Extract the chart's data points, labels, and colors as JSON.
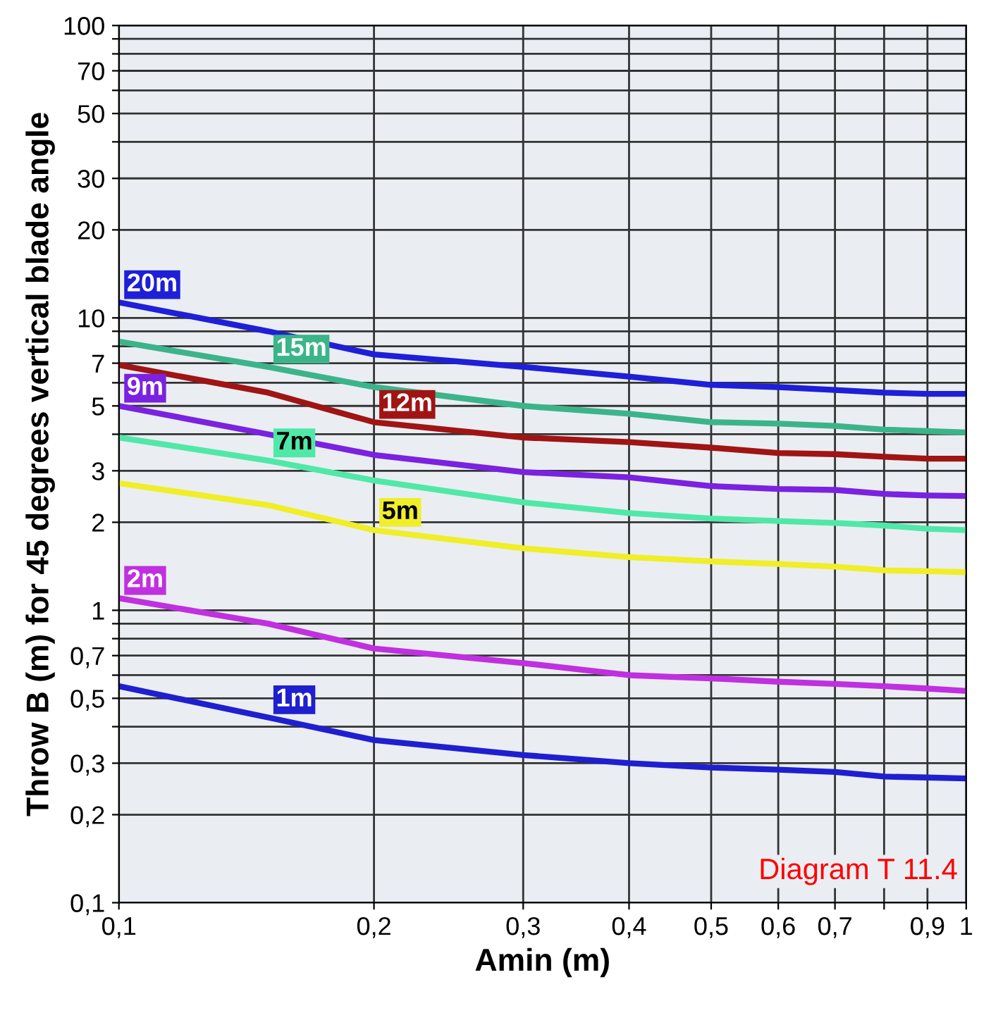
{
  "chart_data": {
    "type": "line",
    "xlabel": "Amin (m)",
    "ylabel": "Throw B (m) for 45 degrees vertical blade angle",
    "log": "xy",
    "grid": true,
    "marker": "none",
    "line_style": "solid",
    "x": [
      0.1,
      0.15,
      0.2,
      0.3,
      0.4,
      0.5,
      0.6,
      0.7,
      0.8,
      0.9,
      1.0
    ],
    "xlim": [
      0.1,
      1
    ],
    "ylim": [
      0.1,
      100
    ],
    "xticks": [
      {
        "value": 0.1,
        "label": "0,1"
      },
      {
        "value": 0.2,
        "label": "0,2"
      },
      {
        "value": 0.3,
        "label": "0,3"
      },
      {
        "value": 0.4,
        "label": "0,4"
      },
      {
        "value": 0.5,
        "label": "0,5"
      },
      {
        "value": 0.6,
        "label": "0,6"
      },
      {
        "value": 0.7,
        "label": "0,7"
      },
      {
        "value": 0.8,
        "label": null
      },
      {
        "value": 0.9,
        "label": "0,9"
      },
      1
    ],
    "yticks": [
      {
        "value": 0.1,
        "label": "0,1"
      },
      {
        "value": 0.2,
        "label": "0,2"
      },
      {
        "value": 0.3,
        "label": "0,3"
      },
      {
        "value": 0.4,
        "label": null
      },
      {
        "value": 0.5,
        "label": "0,5"
      },
      {
        "value": 0.6,
        "label": null
      },
      {
        "value": 0.7,
        "label": "0,7"
      },
      {
        "value": 0.8,
        "label": null
      },
      {
        "value": 0.9,
        "label": null
      },
      1,
      2,
      3,
      {
        "value": 4,
        "label": null
      },
      5,
      {
        "value": 6,
        "label": null
      },
      7,
      {
        "value": 8,
        "label": null
      },
      {
        "value": 9,
        "label": null
      },
      10,
      20,
      30,
      {
        "value": 40,
        "label": null
      },
      50,
      {
        "value": 60,
        "label": null
      },
      70,
      {
        "value": 80,
        "label": null
      },
      {
        "value": 90,
        "label": null
      },
      100
    ],
    "series": [
      {
        "name": "20m",
        "color": "#1f1fd8",
        "values": [
          11.3,
          9.0,
          7.5,
          6.8,
          6.3,
          5.9,
          5.8,
          5.67,
          5.55,
          5.5,
          5.5
        ]
      },
      {
        "name": "15m",
        "color": "#3cb48a",
        "values": [
          8.3,
          6.8,
          5.8,
          5.0,
          4.7,
          4.4,
          4.35,
          4.27,
          4.15,
          4.1,
          4.06
        ]
      },
      {
        "name": "12m",
        "color": "#a01414",
        "values": [
          6.9,
          5.55,
          4.4,
          3.9,
          3.76,
          3.6,
          3.45,
          3.42,
          3.35,
          3.3,
          3.3
        ]
      },
      {
        "name": "9m",
        "color": "#7a22e0",
        "values": [
          5.0,
          4.0,
          3.4,
          2.97,
          2.85,
          2.66,
          2.6,
          2.58,
          2.5,
          2.47,
          2.46
        ]
      },
      {
        "name": "7m",
        "color": "#50e8a8",
        "values": [
          3.9,
          3.25,
          2.78,
          2.34,
          2.15,
          2.06,
          2.02,
          1.99,
          1.95,
          1.9,
          1.88
        ]
      },
      {
        "name": "5m",
        "color": "#f0ee28",
        "values": [
          2.72,
          2.29,
          1.88,
          1.63,
          1.52,
          1.47,
          1.44,
          1.41,
          1.37,
          1.36,
          1.35
        ]
      },
      {
        "name": "2m",
        "color": "#c030e0",
        "values": [
          1.1,
          0.9,
          0.74,
          0.66,
          0.6,
          0.585,
          0.57,
          0.56,
          0.55,
          0.54,
          0.53
        ]
      },
      {
        "name": "1m",
        "color": "#1f1fd0",
        "values": [
          0.55,
          0.43,
          0.36,
          0.32,
          0.3,
          0.29,
          0.285,
          0.28,
          0.27,
          0.268,
          0.266
        ]
      }
    ],
    "annotations": [
      "Diagram T 11.4"
    ]
  }
}
